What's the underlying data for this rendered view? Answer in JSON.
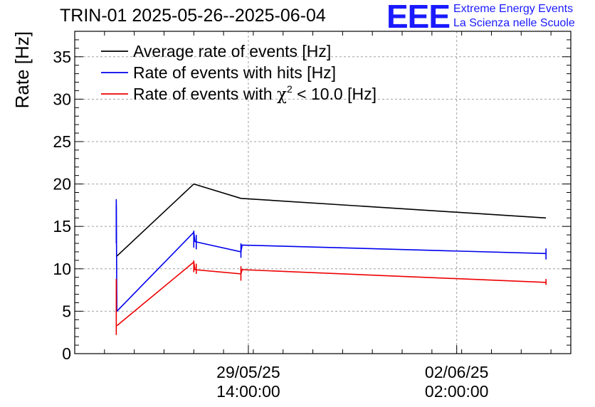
{
  "header": {
    "title": "TRIN-01 2025-05-26--2025-06-04",
    "logo_text": "EEE",
    "logo_line1": "Extreme Energy Events",
    "logo_line2": "La Scienza nelle Scuole"
  },
  "colors": {
    "average": "#000000",
    "hits": "#0000ee",
    "chi2": "#ee0000",
    "grid": "#a0a0a0",
    "logo": "#1a1aff"
  },
  "chart_data": {
    "type": "line",
    "ylabel": "Rate [Hz]",
    "ylim": [
      0,
      38
    ],
    "yticks": [
      "0",
      "5",
      "10",
      "15",
      "20",
      "25",
      "30",
      "35"
    ],
    "xlim": [
      "2025-05-26 16:00",
      "2025-06-04 00:00"
    ],
    "xticks": [
      {
        "date": "29/05/25",
        "time": "14:00:00",
        "at": "2025-05-29 14:00"
      },
      {
        "date": "02/06/25",
        "time": "02:00:00",
        "at": "2025-06-02 02:00"
      }
    ],
    "grid": true,
    "legend_position": "top-left",
    "legend": [
      {
        "label": "Average rate of events [Hz]",
        "series": "average"
      },
      {
        "label": "Rate of events with hits [Hz]",
        "series": "hits"
      },
      {
        "label_pre": "Rate of events with ",
        "label_chi": "χ",
        "label_sup": "2",
        "label_post": " < 10.0 [Hz]",
        "series": "chi2"
      }
    ],
    "series": [
      {
        "id": "average",
        "points": [
          [
            "2025-05-27 09:00",
            11.5
          ],
          [
            "2025-05-28 16:00",
            20.0
          ],
          [
            "2025-05-29 11:00",
            18.3
          ],
          [
            "2025-06-03 14:00",
            16.0
          ]
        ],
        "errors": []
      },
      {
        "id": "hits",
        "points": [
          [
            "2025-05-27 08:45",
            17.5
          ],
          [
            "2025-05-27 09:00",
            5.0
          ],
          [
            "2025-05-28 16:00",
            14.3
          ],
          [
            "2025-05-28 16:30",
            13.2
          ],
          [
            "2025-05-29 11:00",
            12.0
          ],
          [
            "2025-05-29 11:30",
            12.8
          ],
          [
            "2025-06-03 14:00",
            11.8
          ]
        ],
        "errors": [
          {
            "x": "2025-05-27 08:45",
            "low": 13.0,
            "high": 18.2
          },
          {
            "x": "2025-05-28 16:00",
            "low": 12.5,
            "high": 14.5
          },
          {
            "x": "2025-05-28 17:00",
            "low": 12.3,
            "high": 14.0
          },
          {
            "x": "2025-05-29 11:00",
            "low": 11.3,
            "high": 13.0
          },
          {
            "x": "2025-06-03 14:00",
            "low": 11.1,
            "high": 12.4
          }
        ]
      },
      {
        "id": "chi2",
        "points": [
          [
            "2025-05-27 09:00",
            3.3
          ],
          [
            "2025-05-28 16:00",
            10.8
          ],
          [
            "2025-05-28 16:30",
            9.9
          ],
          [
            "2025-05-29 11:00",
            9.4
          ],
          [
            "2025-05-29 11:30",
            9.9
          ],
          [
            "2025-06-03 14:00",
            8.4
          ]
        ],
        "errors": [
          {
            "x": "2025-05-27 08:45",
            "low": 2.2,
            "high": 8.8
          },
          {
            "x": "2025-05-28 16:00",
            "low": 9.6,
            "high": 11.0
          },
          {
            "x": "2025-05-28 17:00",
            "low": 9.4,
            "high": 10.6
          },
          {
            "x": "2025-05-29 11:00",
            "low": 8.6,
            "high": 10.3
          },
          {
            "x": "2025-06-03 14:00",
            "low": 8.1,
            "high": 8.8
          }
        ]
      }
    ]
  }
}
